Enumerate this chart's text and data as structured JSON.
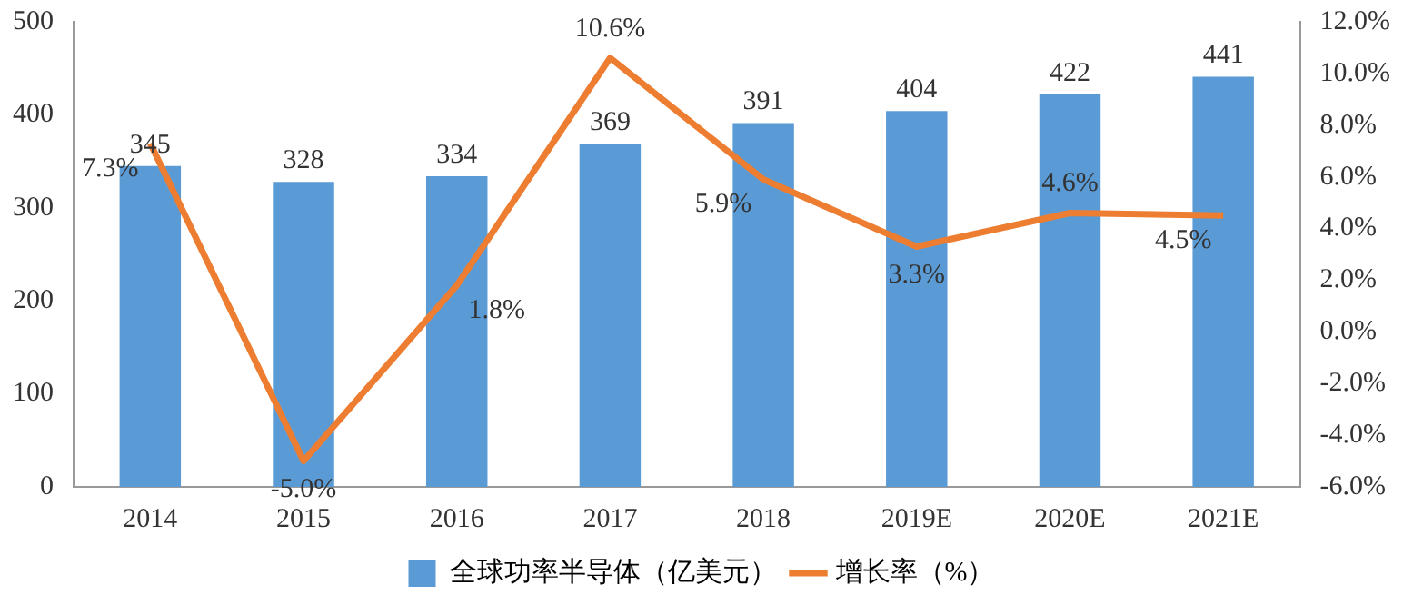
{
  "chart_data": {
    "type": "bar",
    "categories": [
      "2014",
      "2015",
      "2016",
      "2017",
      "2018",
      "2019E",
      "2020E",
      "2021E"
    ],
    "series": [
      {
        "name": "全球功率半导体（亿美元）",
        "color": "#5b9bd5",
        "values": [
          345,
          328,
          334,
          369,
          391,
          404,
          422,
          441
        ],
        "value_labels": [
          "345",
          "328",
          "334",
          "369",
          "391",
          "404",
          "422",
          "441"
        ]
      },
      {
        "name": "增长率（%）",
        "type": "line",
        "axis": "y2",
        "color": "#ed7d31",
        "values": [
          7.3,
          -5.0,
          1.8,
          10.6,
          5.9,
          3.3,
          4.6,
          4.5
        ],
        "value_labels": [
          "7.3%",
          "-5.0%",
          "1.8%",
          "10.6%",
          "5.9%",
          "3.3%",
          "4.6%",
          "4.5%"
        ]
      }
    ],
    "ylim": [
      0,
      500
    ],
    "yticks": [
      0,
      100,
      200,
      300,
      400,
      500
    ],
    "y2lim": [
      -6,
      12
    ],
    "y2ticks": [
      {
        "value": -6,
        "label": "-6.0%"
      },
      {
        "value": -4,
        "label": "-4.0%"
      },
      {
        "value": -2,
        "label": "-2.0%"
      },
      {
        "value": 0,
        "label": "0.0%"
      },
      {
        "value": 2,
        "label": "2.0%"
      },
      {
        "value": 4,
        "label": "4.0%"
      },
      {
        "value": 6,
        "label": "6.0%"
      },
      {
        "value": 8,
        "label": "8.0%"
      },
      {
        "value": 10,
        "label": "10.0%"
      },
      {
        "value": 12,
        "label": "12.0%"
      }
    ],
    "grid": false,
    "legend": "bottom",
    "marker": "none",
    "line_style": "solid"
  }
}
